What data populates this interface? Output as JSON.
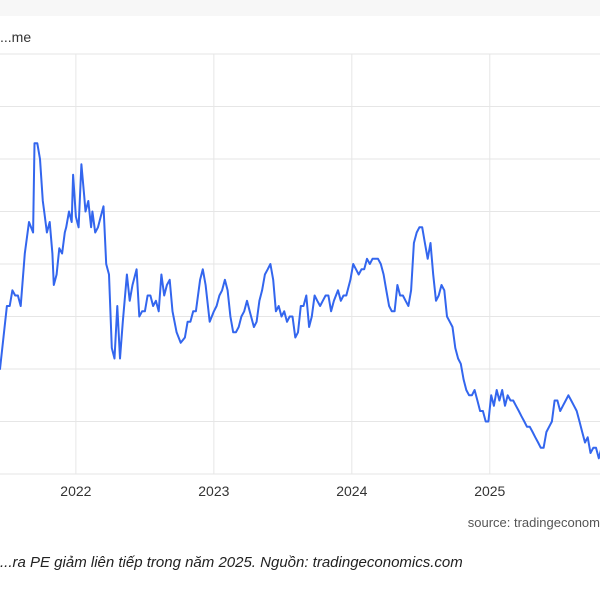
{
  "chart_data": {
    "type": "line",
    "title": "...me",
    "source": "source: tradingeconom",
    "caption": "...ra PE giảm liên tiếp trong năm 2025. Nguồn: tradingeconomics.com",
    "x_ticks": [
      "2022",
      "2023",
      "2024",
      "2025"
    ],
    "xlim": [
      2021.45,
      2025.98
    ],
    "ylim": [
      0,
      8
    ],
    "grid": true,
    "color": "#3366ee",
    "series": [
      {
        "x": [
          2021.45,
          2021.5,
          2021.52,
          2021.54,
          2021.56,
          2021.58,
          2021.6,
          2021.63,
          2021.66,
          2021.69,
          2021.7,
          2021.72,
          2021.74,
          2021.76,
          2021.77,
          2021.79,
          2021.81,
          2021.83,
          2021.84,
          2021.86,
          2021.88,
          2021.9,
          2021.92,
          2021.93,
          2021.95,
          2021.97,
          2021.98,
          2022.0,
          2022.02,
          2022.04,
          2022.06,
          2022.07,
          2022.09,
          2022.11,
          2022.12,
          2022.14,
          2022.16,
          2022.18,
          2022.2,
          2022.22,
          2022.24,
          2022.26,
          2022.28,
          2022.3,
          2022.32,
          2022.34,
          2022.37,
          2022.39,
          2022.41,
          2022.44,
          2022.46,
          2022.48,
          2022.5,
          2022.52,
          2022.54,
          2022.56,
          2022.58,
          2022.6,
          2022.62,
          2022.64,
          2022.66,
          2022.68,
          2022.7,
          2022.73,
          2022.76,
          2022.79,
          2022.81,
          2022.83,
          2022.85,
          2022.87,
          2022.9,
          2022.92,
          2022.94,
          2022.97,
          2023.0,
          2023.02,
          2023.04,
          2023.06,
          2023.08,
          2023.1,
          2023.12,
          2023.14,
          2023.16,
          2023.18,
          2023.2,
          2023.22,
          2023.24,
          2023.26,
          2023.29,
          2023.31,
          2023.33,
          2023.35,
          2023.37,
          2023.39,
          2023.41,
          2023.43,
          2023.45,
          2023.47,
          2023.49,
          2023.51,
          2023.53,
          2023.55,
          2023.57,
          2023.59,
          2023.61,
          2023.63,
          2023.65,
          2023.67,
          2023.69,
          2023.71,
          2023.73,
          2023.75,
          2023.77,
          2023.79,
          2023.81,
          2023.83,
          2023.85,
          2023.87,
          2023.9,
          2023.92,
          2023.94,
          2023.96,
          2023.99,
          2024.01,
          2024.03,
          2024.05,
          2024.07,
          2024.09,
          2024.11,
          2024.13,
          2024.15,
          2024.17,
          2024.19,
          2024.21,
          2024.23,
          2024.25,
          2024.27,
          2024.29,
          2024.31,
          2024.33,
          2024.35,
          2024.37,
          2024.39,
          2024.41,
          2024.43,
          2024.45,
          2024.47,
          2024.49,
          2024.51,
          2024.53,
          2024.55,
          2024.57,
          2024.59,
          2024.61,
          2024.63,
          2024.65,
          2024.67,
          2024.69,
          2024.71,
          2024.73,
          2024.75,
          2024.77,
          2024.79,
          2024.81,
          2024.83,
          2024.85,
          2024.87,
          2024.89,
          2024.91,
          2024.93,
          2024.95,
          2024.97,
          2024.99,
          2025.01,
          2025.03,
          2025.05,
          2025.07,
          2025.09,
          2025.11,
          2025.13,
          2025.15,
          2025.17,
          2025.19,
          2025.21,
          2025.23,
          2025.25,
          2025.27,
          2025.29,
          2025.31,
          2025.33,
          2025.35,
          2025.37,
          2025.39,
          2025.41,
          2025.43,
          2025.45,
          2025.47,
          2025.49,
          2025.51,
          2025.53,
          2025.55,
          2025.57,
          2025.59,
          2025.61,
          2025.63,
          2025.65,
          2025.67,
          2025.69,
          2025.71,
          2025.73,
          2025.75,
          2025.77,
          2025.79,
          2025.81,
          2025.83,
          2025.85,
          2025.87,
          2025.89,
          2025.91,
          2025.93,
          2025.95,
          2025.98
        ],
        "y": [
          2.0,
          3.2,
          3.2,
          3.5,
          3.4,
          3.4,
          3.2,
          4.2,
          4.8,
          4.6,
          6.3,
          6.3,
          6.0,
          5.2,
          5.0,
          4.6,
          4.8,
          4.2,
          3.6,
          3.8,
          4.3,
          4.2,
          4.6,
          4.7,
          5.0,
          4.8,
          5.7,
          4.9,
          4.7,
          5.9,
          5.3,
          5.0,
          5.2,
          4.7,
          5.0,
          4.6,
          4.7,
          4.9,
          5.1,
          4.0,
          3.8,
          2.4,
          2.2,
          3.2,
          2.2,
          2.9,
          3.8,
          3.3,
          3.6,
          3.9,
          3.0,
          3.1,
          3.1,
          3.4,
          3.4,
          3.2,
          3.3,
          3.1,
          3.8,
          3.4,
          3.6,
          3.7,
          3.1,
          2.7,
          2.5,
          2.6,
          2.9,
          2.9,
          3.1,
          3.1,
          3.7,
          3.9,
          3.6,
          2.9,
          3.1,
          3.2,
          3.4,
          3.5,
          3.7,
          3.5,
          3.0,
          2.7,
          2.7,
          2.8,
          3.0,
          3.1,
          3.3,
          3.1,
          2.8,
          2.9,
          3.3,
          3.5,
          3.8,
          3.9,
          4.0,
          3.7,
          3.1,
          3.2,
          3.0,
          3.1,
          2.9,
          3.0,
          3.0,
          2.6,
          2.7,
          3.2,
          3.2,
          3.4,
          2.8,
          3.0,
          3.4,
          3.3,
          3.2,
          3.3,
          3.4,
          3.4,
          3.1,
          3.3,
          3.5,
          3.3,
          3.4,
          3.4,
          3.7,
          4.0,
          3.9,
          3.8,
          3.9,
          3.9,
          4.1,
          4.0,
          4.1,
          4.1,
          4.1,
          4.0,
          3.8,
          3.5,
          3.2,
          3.1,
          3.1,
          3.6,
          3.4,
          3.4,
          3.3,
          3.2,
          3.5,
          4.4,
          4.6,
          4.7,
          4.7,
          4.4,
          4.1,
          4.4,
          3.8,
          3.3,
          3.4,
          3.6,
          3.5,
          3.0,
          2.9,
          2.8,
          2.4,
          2.2,
          2.1,
          1.8,
          1.6,
          1.5,
          1.5,
          1.6,
          1.4,
          1.2,
          1.2,
          1.0,
          1.0,
          1.5,
          1.3,
          1.6,
          1.4,
          1.6,
          1.3,
          1.5,
          1.4,
          1.4,
          1.3,
          1.2,
          1.1,
          1.0,
          0.9,
          0.9,
          0.8,
          0.7,
          0.6,
          0.5,
          0.5,
          0.8,
          0.9,
          1.0,
          1.4,
          1.4,
          1.2,
          1.3,
          1.4,
          1.5,
          1.4,
          1.3,
          1.2,
          1.0,
          0.8,
          0.6,
          0.7,
          0.4,
          0.5,
          0.5,
          0.3,
          0.5,
          0.6,
          0.7,
          0.6,
          0.4,
          0.2,
          0.3,
          0.5,
          0.6
        ]
      }
    ]
  }
}
